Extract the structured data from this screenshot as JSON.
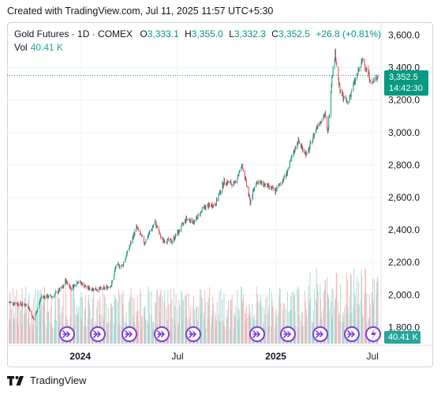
{
  "header": {
    "created_text": "Created with TradingView.com, Jul 11, 2025 11:57 UTC+5:30"
  },
  "legend": {
    "symbol": "Gold Futures · 1D · COMEX",
    "open_label": "O",
    "open": "3,333.1",
    "high_label": "H",
    "high": "3,355.0",
    "low_label": "L",
    "low": "3,332.3",
    "close_label": "C",
    "close": "3,352.5",
    "change": "+26.8 (+0.81%)",
    "vol_label": "Vol",
    "vol_value": "40.41 K"
  },
  "badges": {
    "last_price": "3,352.5",
    "countdown": "14:42:30",
    "volume": "40.41 K"
  },
  "footer": {
    "brand": "TradingView"
  },
  "colors": {
    "up": "#089981",
    "down": "#f23645",
    "up_volume": "#a6d9d3",
    "down_volume": "#f7b5b9",
    "grid": "#f0f3fa",
    "dividend_marker": "#7b3fe4"
  },
  "icons": [
    "tradingview-logo-icon",
    "dividend-marker-icon",
    "lightning-icon"
  ],
  "chart_data": {
    "type": "candlestick",
    "series": [
      {
        "name": "Gold Futures · 1D · COMEX"
      },
      {
        "name": "Vol"
      }
    ],
    "ylim": [
      1700,
      3680
    ],
    "y_ticks": [
      "3,600.0",
      "3,400.0",
      "3,200.0",
      "3,000.0",
      "2,800.0",
      "2,600.0",
      "2,400.0",
      "2,200.0",
      "2,000.0",
      "1,800.0"
    ],
    "y_tick_values": [
      3600,
      3400,
      3200,
      3000,
      2800,
      2600,
      2400,
      2200,
      2000,
      1800
    ],
    "x_ticks": [
      "2024",
      "Jul",
      "2025",
      "Jul"
    ],
    "x_tick_dates": [
      "2024-01-01",
      "2024-07-01",
      "2025-01-01",
      "2025-07-01"
    ],
    "x_tick_bold": [
      true,
      false,
      true,
      false
    ],
    "x_range": [
      "2023-08-20",
      "2025-07-11"
    ],
    "last_price": 3352.5,
    "approx_close_path": [
      [
        "2023-08-20",
        1955
      ],
      [
        "2023-09-10",
        1945
      ],
      [
        "2023-09-25",
        1935
      ],
      [
        "2023-10-06",
        1845
      ],
      [
        "2023-10-20",
        1990
      ],
      [
        "2023-11-10",
        1990
      ],
      [
        "2023-11-30",
        2050
      ],
      [
        "2023-12-04",
        2090
      ],
      [
        "2023-12-15",
        2040
      ],
      [
        "2023-12-28",
        2085
      ],
      [
        "2024-01-15",
        2040
      ],
      [
        "2024-02-10",
        2035
      ],
      [
        "2024-02-28",
        2060
      ],
      [
        "2024-03-08",
        2180
      ],
      [
        "2024-03-20",
        2180
      ],
      [
        "2024-04-10",
        2370
      ],
      [
        "2024-04-15",
        2420
      ],
      [
        "2024-04-30",
        2320
      ],
      [
        "2024-05-20",
        2450
      ],
      [
        "2024-06-01",
        2340
      ],
      [
        "2024-06-20",
        2330
      ],
      [
        "2024-07-05",
        2400
      ],
      [
        "2024-07-17",
        2470
      ],
      [
        "2024-08-01",
        2450
      ],
      [
        "2024-08-20",
        2540
      ],
      [
        "2024-09-10",
        2560
      ],
      [
        "2024-09-26",
        2700
      ],
      [
        "2024-10-15",
        2680
      ],
      [
        "2024-10-30",
        2800
      ],
      [
        "2024-11-14",
        2570
      ],
      [
        "2024-11-25",
        2700
      ],
      [
        "2024-12-10",
        2680
      ],
      [
        "2024-12-31",
        2640
      ],
      [
        "2025-01-20",
        2740
      ],
      [
        "2025-02-11",
        2950
      ],
      [
        "2025-02-28",
        2860
      ],
      [
        "2025-03-20",
        3050
      ],
      [
        "2025-04-03",
        3110
      ],
      [
        "2025-04-08",
        2990
      ],
      [
        "2025-04-16",
        3350
      ],
      [
        "2025-04-22",
        3490
      ],
      [
        "2025-05-01",
        3250
      ],
      [
        "2025-05-15",
        3180
      ],
      [
        "2025-05-27",
        3300
      ],
      [
        "2025-06-05",
        3380
      ],
      [
        "2025-06-13",
        3450
      ],
      [
        "2025-06-30",
        3300
      ],
      [
        "2025-07-11",
        3352.5
      ]
    ]
  }
}
